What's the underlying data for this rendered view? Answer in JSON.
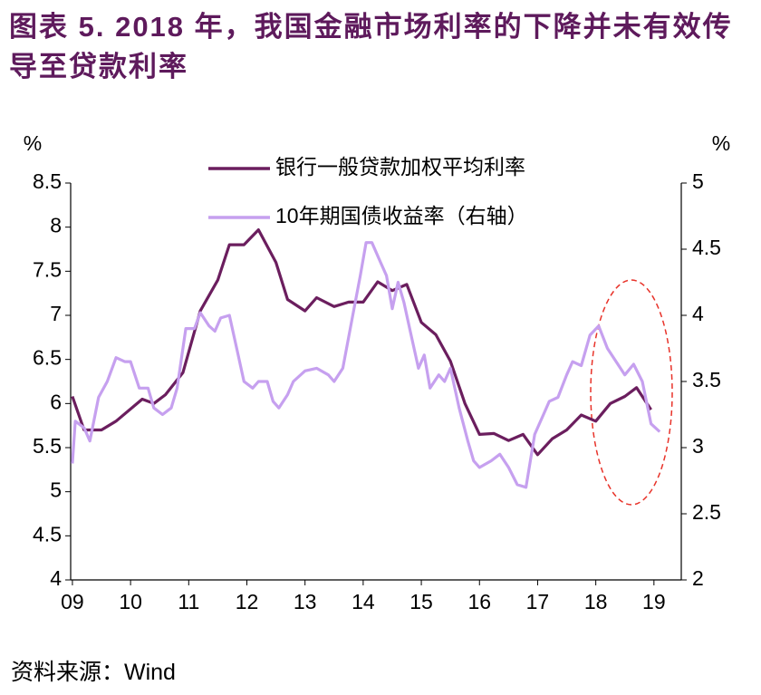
{
  "chart_data": {
    "type": "line",
    "title": "图表 5.  2018 年，我国金融市场利率的下降并未有效传导至贷款利率",
    "ylabel": "%",
    "y2label": "%",
    "source": "资料来源：Wind",
    "xlim": [
      2008.97,
      2019.47
    ],
    "xticks": [
      {
        "value": 2009,
        "label": "09"
      },
      {
        "value": 2010,
        "label": "10"
      },
      {
        "value": 2011,
        "label": "11"
      },
      {
        "value": 2012,
        "label": "12"
      },
      {
        "value": 2013,
        "label": "13"
      },
      {
        "value": 2014,
        "label": "14"
      },
      {
        "value": 2015,
        "label": "15"
      },
      {
        "value": 2016,
        "label": "16"
      },
      {
        "value": 2017,
        "label": "17"
      },
      {
        "value": 2018,
        "label": "18"
      },
      {
        "value": 2019,
        "label": "19"
      }
    ],
    "ylim": [
      4,
      8.5
    ],
    "yticks": [
      4,
      4.5,
      5,
      5.5,
      6,
      6.5,
      7,
      7.5,
      8,
      8.5
    ],
    "y2lim": [
      2,
      5
    ],
    "y2ticks": [
      2,
      2.5,
      3,
      3.5,
      4,
      4.5,
      5
    ],
    "series": [
      {
        "name": "银行一般贷款加权平均利率",
        "color": "#6b1e5e",
        "axis": "y",
        "x": [
          2009.0,
          2009.2,
          2009.5,
          2009.75,
          2010.2,
          2010.4,
          2010.6,
          2010.9,
          2011.2,
          2011.5,
          2011.7,
          2011.95,
          2012.2,
          2012.5,
          2012.7,
          2013.0,
          2013.2,
          2013.5,
          2013.75,
          2014.0,
          2014.25,
          2014.5,
          2014.75,
          2015.0,
          2015.25,
          2015.5,
          2015.75,
          2016.0,
          2016.25,
          2016.5,
          2016.75,
          2017.0,
          2017.25,
          2017.5,
          2017.75,
          2018.0,
          2018.25,
          2018.5,
          2018.7,
          2018.95
        ],
        "values": [
          6.08,
          5.7,
          5.7,
          5.8,
          6.05,
          6.0,
          6.1,
          6.35,
          7.05,
          7.4,
          7.8,
          7.8,
          7.97,
          7.6,
          7.18,
          7.05,
          7.2,
          7.1,
          7.15,
          7.15,
          7.38,
          7.28,
          7.35,
          6.92,
          6.78,
          6.48,
          6.0,
          5.65,
          5.66,
          5.58,
          5.65,
          5.42,
          5.6,
          5.7,
          5.87,
          5.8,
          6.0,
          6.08,
          6.18,
          5.93
        ]
      },
      {
        "name": "10年期国债收益率（右轴）",
        "color": "#c6a0ef",
        "axis": "y2",
        "x": [
          2009.0,
          2009.05,
          2009.2,
          2009.3,
          2009.45,
          2009.6,
          2009.75,
          2009.9,
          2010.0,
          2010.15,
          2010.3,
          2010.4,
          2010.55,
          2010.7,
          2010.8,
          2010.95,
          2011.1,
          2011.2,
          2011.35,
          2011.45,
          2011.55,
          2011.7,
          2011.85,
          2011.95,
          2012.1,
          2012.2,
          2012.35,
          2012.45,
          2012.55,
          2012.7,
          2012.8,
          2013.0,
          2013.2,
          2013.4,
          2013.5,
          2013.65,
          2013.8,
          2013.95,
          2014.05,
          2014.15,
          2014.3,
          2014.4,
          2014.5,
          2014.6,
          2014.7,
          2014.8,
          2014.95,
          2015.05,
          2015.15,
          2015.3,
          2015.4,
          2015.5,
          2015.65,
          2015.8,
          2015.9,
          2016.0,
          2016.2,
          2016.35,
          2016.5,
          2016.65,
          2016.8,
          2016.95,
          2017.1,
          2017.2,
          2017.35,
          2017.5,
          2017.6,
          2017.75,
          2017.9,
          2018.05,
          2018.2,
          2018.35,
          2018.5,
          2018.65,
          2018.8,
          2018.95,
          2019.1
        ],
        "values": [
          2.88,
          3.2,
          3.15,
          3.05,
          3.38,
          3.5,
          3.68,
          3.65,
          3.65,
          3.45,
          3.45,
          3.3,
          3.25,
          3.3,
          3.45,
          3.9,
          3.9,
          4.02,
          3.92,
          3.88,
          3.98,
          4.0,
          3.7,
          3.5,
          3.45,
          3.5,
          3.5,
          3.35,
          3.3,
          3.4,
          3.5,
          3.58,
          3.6,
          3.55,
          3.5,
          3.6,
          3.95,
          4.3,
          4.55,
          4.55,
          4.4,
          4.3,
          4.05,
          4.25,
          4.1,
          3.9,
          3.6,
          3.7,
          3.45,
          3.55,
          3.5,
          3.6,
          3.3,
          3.05,
          2.9,
          2.85,
          2.9,
          2.95,
          2.85,
          2.72,
          2.7,
          3.1,
          3.25,
          3.35,
          3.38,
          3.55,
          3.65,
          3.62,
          3.85,
          3.92,
          3.75,
          3.65,
          3.55,
          3.63,
          3.5,
          3.18,
          3.12
        ]
      }
    ]
  }
}
